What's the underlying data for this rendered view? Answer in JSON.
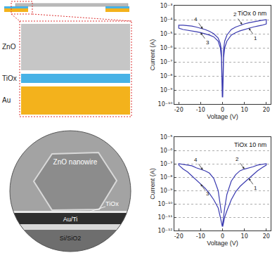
{
  "schematic": {
    "layers": [
      "ZnO",
      "TiOx",
      "Au"
    ]
  },
  "tem_image": {
    "labels": [
      "ZnO nanowire",
      "TiOx",
      "Au/Ti",
      "Si/SiO2"
    ]
  },
  "chart_data": [
    {
      "type": "line",
      "title": "TiOx 0 nm",
      "x_label": "Voltage (V)",
      "y_label": "Current (A)",
      "log": "y",
      "grid": true,
      "color": "#3a3ab0",
      "xlim": [
        -22,
        22
      ],
      "xticks": [
        -20,
        -10,
        0,
        10,
        20
      ],
      "ylim": [
        1e-10,
        0.001
      ],
      "yticks": [
        {
          "value": 1e-10,
          "label": "10⁻¹⁰"
        },
        {
          "value": 1e-09,
          "label": "10⁻⁹"
        },
        {
          "value": 1e-08,
          "label": "10⁻⁸"
        },
        {
          "value": 1e-07,
          "label": "10⁻⁷"
        },
        {
          "value": 1e-06,
          "label": "10⁻⁶"
        },
        {
          "value": 1e-05,
          "label": "10⁻⁵"
        },
        {
          "value": 0.0001,
          "label": "10⁻⁴"
        },
        {
          "value": 0.001,
          "label": "10⁻³"
        }
      ],
      "x": [
        0.1,
        0.5,
        1,
        2,
        4,
        6,
        8,
        10,
        12,
        14,
        16,
        18,
        20,
        20,
        18,
        16,
        14,
        12,
        10,
        8,
        6,
        4,
        2,
        1,
        0.5,
        0.1,
        -0.1,
        -0.5,
        -1,
        -2,
        -4,
        -6,
        -8,
        -10,
        -12,
        -14,
        -16,
        -18,
        -20,
        -20,
        -18,
        -16,
        -14,
        -12,
        -10,
        -8,
        -6,
        -4,
        -2,
        -1,
        -0.5,
        -0.1
      ],
      "values": [
        3e-10,
        2e-07,
        1e-06,
        3e-06,
        8e-06,
        1.2e-05,
        1.6e-05,
        2e-05,
        2.5e-05,
        3e-05,
        3.5e-05,
        4e-05,
        5e-05,
        0.0001,
        9e-05,
        8e-05,
        7e-05,
        6e-05,
        5e-05,
        4e-05,
        3e-05,
        2e-05,
        8e-06,
        3e-06,
        8e-07,
        1e-09,
        3e-10,
        2e-07,
        1e-06,
        3e-06,
        6e-06,
        8e-06,
        1e-05,
        1.2e-05,
        1.4e-05,
        1.6e-05,
        1.8e-05,
        2e-05,
        2.5e-05,
        4e-05,
        4e-05,
        3.8e-05,
        3.5e-05,
        3e-05,
        2.5e-05,
        2e-05,
        1.5e-05,
        1e-05,
        5e-06,
        2e-06,
        6e-07,
        1e-09
      ],
      "annotations": [
        {
          "text": "1",
          "x": 12,
          "y": 2.5e-05
        },
        {
          "text": "2",
          "x": 9,
          "y": 4.5e-05
        },
        {
          "text": "3",
          "x": -10,
          "y": 1.2e-05
        },
        {
          "text": "4",
          "x": -9,
          "y": 2.2e-05
        }
      ]
    },
    {
      "type": "line",
      "title": "TiOx 10 nm",
      "x_label": "Voltage (V)",
      "y_label": "Current (A)",
      "log": "y",
      "grid": true,
      "color": "#3a3ab0",
      "xlim": [
        -22,
        22
      ],
      "xticks": [
        -20,
        -10,
        0,
        10,
        20
      ],
      "ylim": [
        1e-12,
        1e-05
      ],
      "yticks": [
        {
          "value": 1e-12,
          "label": "10⁻¹²"
        },
        {
          "value": 1e-11,
          "label": "10⁻¹¹"
        },
        {
          "value": 1e-10,
          "label": "10⁻¹⁰"
        },
        {
          "value": 1e-09,
          "label": "10⁻⁹"
        },
        {
          "value": 1e-08,
          "label": "10⁻⁸"
        },
        {
          "value": 1e-07,
          "label": "10⁻⁷"
        },
        {
          "value": 1e-06,
          "label": "10⁻⁶"
        },
        {
          "value": 1e-05,
          "label": "10⁻⁵"
        }
      ],
      "x": [
        0.1,
        1,
        2,
        4,
        6,
        8,
        10,
        12,
        14,
        16,
        18,
        20,
        20,
        18,
        16,
        14,
        12,
        10,
        8,
        6,
        4,
        2,
        1,
        0.5,
        -0.1,
        -1,
        -2,
        -4,
        -6,
        -8,
        -10,
        -12,
        -14,
        -16,
        -18,
        -20,
        -20,
        -18,
        -16,
        -14,
        -12,
        -10,
        -8,
        -6,
        -4,
        -2,
        -1,
        -0.5
      ],
      "values": [
        2e-12,
        1e-11,
        3e-11,
        2e-10,
        8e-10,
        2e-09,
        4e-09,
        8e-09,
        1.5e-08,
        3e-08,
        5e-08,
        8e-08,
        1e-07,
        9e-08,
        8e-08,
        6e-08,
        5e-08,
        4e-08,
        3e-08,
        1.5e-08,
        5e-09,
        5e-10,
        5e-11,
        1e-11,
        2e-12,
        1e-11,
        5e-11,
        2e-10,
        6e-10,
        1.5e-09,
        3e-09,
        6e-09,
        1.2e-08,
        2.5e-08,
        4e-08,
        8e-08,
        1e-07,
        9e-08,
        8e-08,
        7e-08,
        5e-08,
        4e-08,
        3e-08,
        2e-08,
        8e-09,
        1e-09,
        1e-10,
        2e-11
      ],
      "annotations": [
        {
          "text": "1",
          "x": 12,
          "y": 8e-09
        },
        {
          "text": "2",
          "x": 10,
          "y": 4e-08
        },
        {
          "text": "3",
          "x": -10,
          "y": 3e-09
        },
        {
          "text": "4",
          "x": -9,
          "y": 3.5e-08
        }
      ]
    }
  ]
}
